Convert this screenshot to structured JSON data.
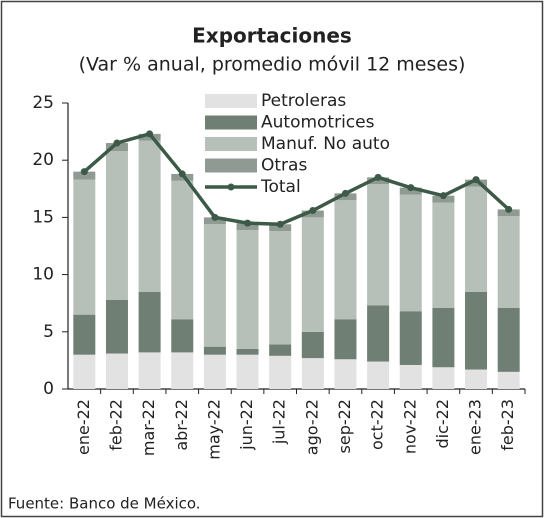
{
  "chart_data": {
    "type": "bar",
    "stacked": true,
    "title": "Exportaciones",
    "subtitle": "(Var % anual, promedio móvil 12 meses)",
    "source": "Fuente: Banco de México.",
    "categories": [
      "ene-22",
      "feb-22",
      "mar-22",
      "abr-22",
      "may-22",
      "jun-22",
      "jul-22",
      "ago-22",
      "sep-22",
      "oct-22",
      "nov-22",
      "dic-22",
      "ene-23",
      "feb-23"
    ],
    "series": [
      {
        "name": "Petroleras",
        "color": "#e2e2e2",
        "values": [
          3.0,
          3.1,
          3.2,
          3.2,
          3.0,
          3.0,
          2.9,
          2.7,
          2.6,
          2.4,
          2.1,
          1.9,
          1.7,
          1.5
        ]
      },
      {
        "name": "Automotrices",
        "color": "#6f7f74",
        "values": [
          3.5,
          4.7,
          5.3,
          2.9,
          0.7,
          0.5,
          1.0,
          2.3,
          3.5,
          4.9,
          4.7,
          5.2,
          6.8,
          5.6
        ]
      },
      {
        "name": "Manuf. No auto",
        "color": "#b7bfb9",
        "values": [
          11.8,
          13.0,
          13.2,
          12.1,
          10.7,
          10.4,
          9.9,
          10.0,
          10.4,
          10.6,
          10.2,
          9.2,
          9.2,
          8.0
        ]
      },
      {
        "name": "Otras",
        "color": "#8f9b92",
        "values": [
          0.7,
          0.7,
          0.6,
          0.6,
          0.6,
          0.6,
          0.6,
          0.6,
          0.6,
          0.6,
          0.6,
          0.6,
          0.6,
          0.6
        ]
      },
      {
        "name": "Total",
        "type": "line",
        "color": "#3d5a48",
        "values": [
          19.0,
          21.5,
          22.3,
          18.8,
          15.0,
          14.5,
          14.4,
          15.6,
          17.1,
          18.5,
          17.6,
          16.9,
          18.3,
          15.7
        ]
      }
    ],
    "ylim": [
      0,
      25
    ],
    "yticks": [
      0,
      5,
      10,
      15,
      20,
      25
    ],
    "grid": false,
    "legend": "upper center"
  }
}
